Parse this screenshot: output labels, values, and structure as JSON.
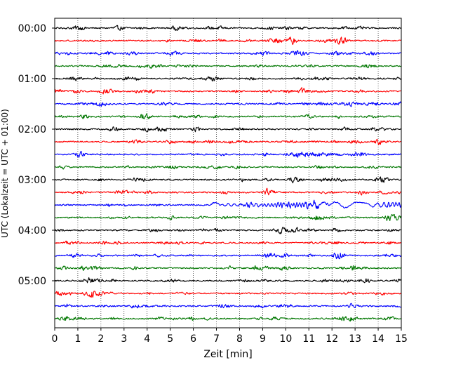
{
  "chart_data": {
    "type": "line",
    "title": "",
    "xlabel": "Zeit  [min]",
    "ylabel": "UTC (Lokalzeit = UTC + 01:00)",
    "xlim": [
      0,
      15
    ],
    "x_ticks": [
      "0",
      "1",
      "2",
      "3",
      "4",
      "5",
      "6",
      "7",
      "8",
      "9",
      "10",
      "11",
      "12",
      "13",
      "14",
      "15"
    ],
    "y_ticks": [
      {
        "label": "00:00",
        "trace_index": 0
      },
      {
        "label": "01:00",
        "trace_index": 4
      },
      {
        "label": "02:00",
        "trace_index": 8
      },
      {
        "label": "03:00",
        "trace_index": 12
      },
      {
        "label": "04:00",
        "trace_index": 16
      },
      {
        "label": "05:00",
        "trace_index": 20
      }
    ],
    "grid": "vertical dotted lines at each minute",
    "trace_interval_minutes": 15,
    "color_cycle": [
      "#000000",
      "#ff0000",
      "#0000ff",
      "#007700"
    ],
    "series": [
      {
        "start": "00:00",
        "color": "#000000"
      },
      {
        "start": "00:15",
        "color": "#ff0000"
      },
      {
        "start": "00:30",
        "color": "#0000ff"
      },
      {
        "start": "00:45",
        "color": "#007700"
      },
      {
        "start": "01:00",
        "color": "#000000"
      },
      {
        "start": "01:15",
        "color": "#ff0000"
      },
      {
        "start": "01:30",
        "color": "#0000ff"
      },
      {
        "start": "01:45",
        "color": "#007700"
      },
      {
        "start": "02:00",
        "color": "#000000"
      },
      {
        "start": "02:15",
        "color": "#ff0000"
      },
      {
        "start": "02:30",
        "color": "#0000ff"
      },
      {
        "start": "02:45",
        "color": "#007700"
      },
      {
        "start": "03:00",
        "color": "#000000"
      },
      {
        "start": "03:15",
        "color": "#ff0000"
      },
      {
        "start": "03:30",
        "color": "#0000ff",
        "event": {
          "onset_min": 6.9,
          "end_min": 15,
          "type": "earthquake"
        }
      },
      {
        "start": "03:45",
        "color": "#007700"
      },
      {
        "start": "04:00",
        "color": "#000000"
      },
      {
        "start": "04:15",
        "color": "#ff0000"
      },
      {
        "start": "04:30",
        "color": "#0000ff"
      },
      {
        "start": "04:45",
        "color": "#007700"
      },
      {
        "start": "05:00",
        "color": "#000000"
      },
      {
        "start": "05:15",
        "color": "#ff0000"
      },
      {
        "start": "05:30",
        "color": "#0000ff"
      },
      {
        "start": "05:45",
        "color": "#007700"
      }
    ]
  }
}
